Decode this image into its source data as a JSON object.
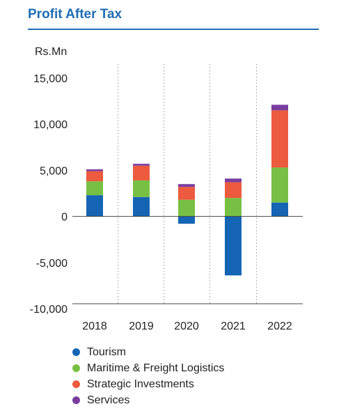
{
  "title": "Profit After Tax",
  "chart_data": {
    "type": "bar",
    "stacked": true,
    "title": "Profit After Tax",
    "unit": "Rs.Mn",
    "xlabel": "",
    "ylabel": "",
    "categories": [
      "2018",
      "2019",
      "2020",
      "2021",
      "2022"
    ],
    "ylim": [
      -10000,
      15000
    ],
    "yticks": [
      15000,
      10000,
      5000,
      0,
      -5000,
      -10000
    ],
    "ytick_labels": [
      "15,000",
      "10,000",
      "5,000",
      "0",
      "-5,000",
      "-10,000"
    ],
    "series": [
      {
        "name": "Tourism",
        "color": "#1565b4",
        "values": [
          2300,
          2100,
          -800,
          -6400,
          1500
        ]
      },
      {
        "name": "Maritime & Freight Logistics",
        "color": "#77c044",
        "values": [
          1500,
          1800,
          1800,
          2000,
          3800
        ]
      },
      {
        "name": "Strategic Investments",
        "color": "#ec5b3e",
        "values": [
          1100,
          1600,
          1400,
          1700,
          6200
        ]
      },
      {
        "name": "Services",
        "color": "#7a3d9e",
        "values": [
          200,
          200,
          300,
          400,
          600
        ]
      }
    ],
    "legend_position": "bottom",
    "grid": false
  }
}
